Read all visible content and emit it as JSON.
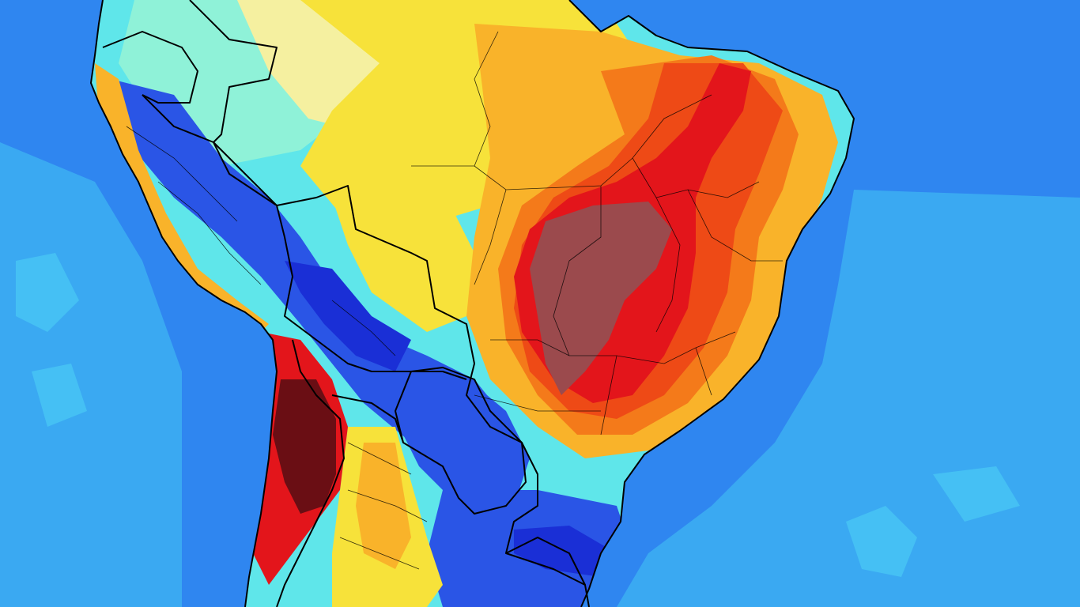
{
  "map": {
    "type": "temperature-anomaly-forecast",
    "region": "South America",
    "colors": {
      "ocean": "#2f86f0",
      "ocean_light": "#3aa9f2",
      "ocean_mid": "#45c0f4",
      "dark_blue": "#1a2fd6",
      "blue": "#2a55e6",
      "cyan": "#5fe6ea",
      "light_cyan": "#8ff2d8",
      "pale_yellow": "#f5f0a0",
      "yellow": "#f7e23a",
      "light_orange": "#f9b32a",
      "orange": "#f47a1a",
      "red_orange": "#ee4a16",
      "red": "#e3151b",
      "brown": "#9b4a4d",
      "dark_maroon": "#6a0e14",
      "border": "#000000"
    }
  }
}
